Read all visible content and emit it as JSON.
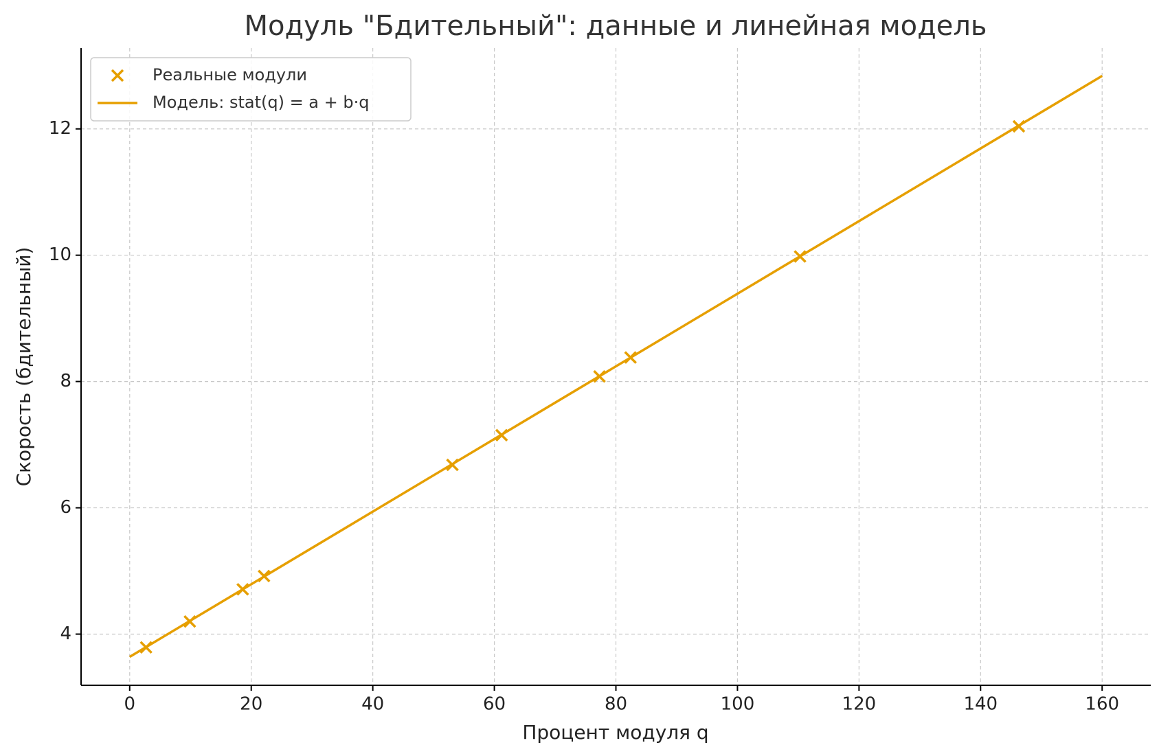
{
  "chart_data": {
    "type": "scatter",
    "title": "Модуль \"Бдительный\": данные и линейная модель",
    "x_label": "Процент модуля q",
    "y_label": "Скорость (бдительный)",
    "series": [
      {
        "name": "Реальные модули",
        "type": "scatter",
        "color": "#e69f00",
        "x": [
          2.7,
          9.9,
          18.6,
          22.1,
          53.1,
          61.2,
          77.3,
          82.4,
          110.3,
          146.3
        ],
        "values": [
          3.79,
          4.2,
          4.71,
          4.92,
          6.68,
          7.15,
          8.08,
          8.38,
          9.98,
          12.04
        ]
      },
      {
        "name": "Модель: stat(q) = a + b·q",
        "type": "line",
        "color": "#e69f00",
        "x": [
          0,
          160
        ],
        "values": [
          3.64,
          12.84
        ]
      }
    ],
    "xlim": [
      -8,
      168
    ],
    "ylim": [
      3.19,
      13.28
    ],
    "xticks": [
      0,
      20,
      40,
      60,
      80,
      100,
      120,
      140,
      160
    ],
    "yticks": [
      4,
      6,
      8,
      10,
      12
    ],
    "grid": true,
    "legend": "upper left"
  }
}
